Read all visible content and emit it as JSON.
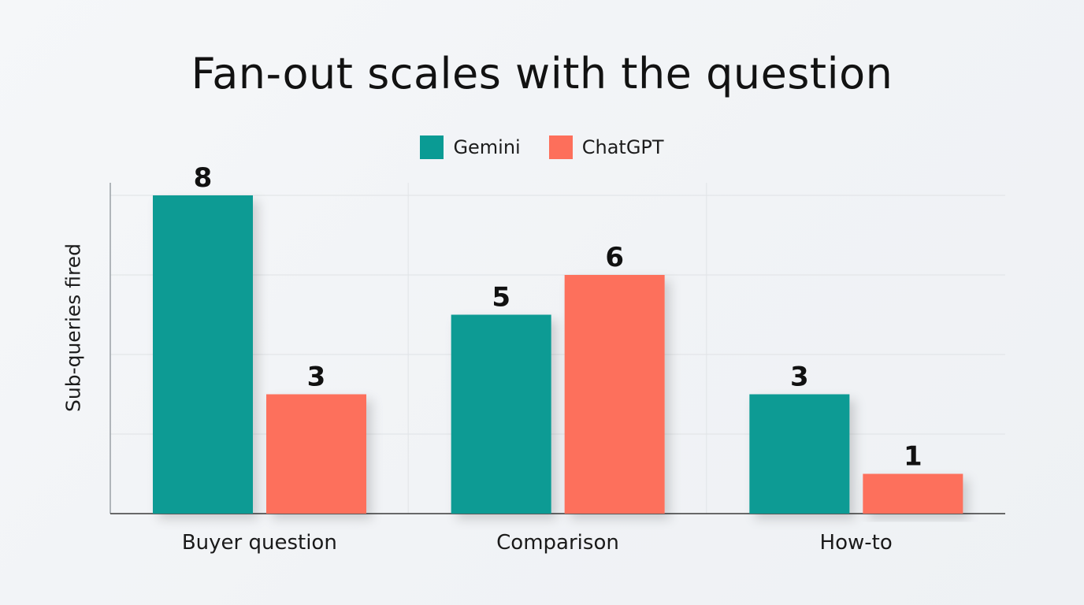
{
  "chart_data": {
    "type": "bar",
    "title": "Fan-out scales with the question",
    "xlabel": "",
    "ylabel": "Sub-queries fired",
    "categories": [
      "Buyer question",
      "Comparison",
      "How-to"
    ],
    "series": [
      {
        "name": "Gemini",
        "values": [
          8,
          5,
          3
        ],
        "color": "#0a9b94"
      },
      {
        "name": "ChatGPT",
        "values": [
          3,
          6,
          1
        ],
        "color": "#fd6f5b"
      }
    ],
    "ylim": [
      0,
      8
    ],
    "grid": true,
    "legend_position": "top-center",
    "data_labels": true
  }
}
